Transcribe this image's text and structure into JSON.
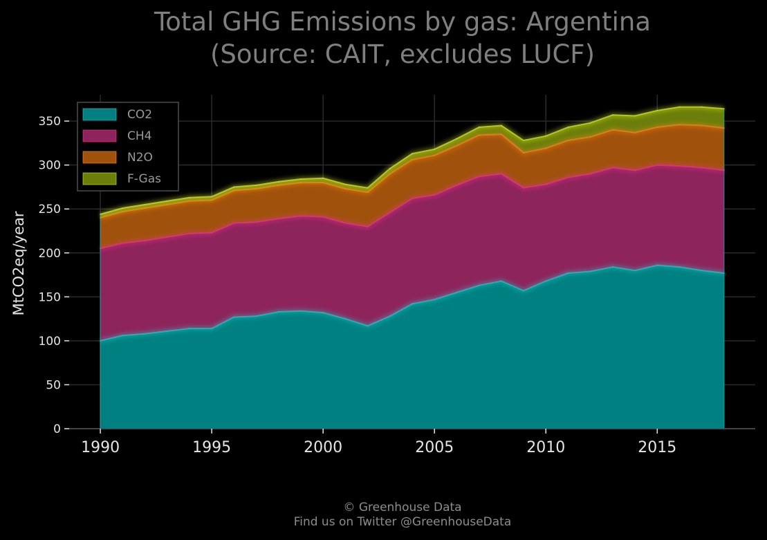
{
  "chart_data": {
    "type": "area",
    "stacked": true,
    "title_lines": [
      "Total GHG Emissions by gas: Argentina",
      "(Source: CAIT, excludes LUCF)"
    ],
    "xlabel": "",
    "ylabel": "MtCO2eq/year",
    "xlim": [
      1988.6,
      2019.4
    ],
    "ylim": [
      0,
      380
    ],
    "x_ticks": [
      1990,
      1995,
      2000,
      2005,
      2010,
      2015
    ],
    "y_ticks": [
      0,
      50,
      100,
      150,
      200,
      250,
      300,
      350
    ],
    "grid": true,
    "legend_position": "top-left",
    "x": [
      1990,
      1991,
      1992,
      1993,
      1994,
      1995,
      1996,
      1997,
      1998,
      1999,
      2000,
      2001,
      2002,
      2003,
      2004,
      2005,
      2006,
      2007,
      2008,
      2009,
      2010,
      2011,
      2012,
      2013,
      2014,
      2015,
      2016,
      2017,
      2018
    ],
    "series": [
      {
        "name": "CO2",
        "color": "#008080",
        "line_color": "#1fbfbf",
        "values": [
          100,
          106,
          108,
          111,
          114,
          114,
          127,
          128,
          133,
          134,
          132,
          125,
          117,
          128,
          142,
          147,
          155,
          163,
          168,
          157,
          168,
          177,
          179,
          184,
          180,
          186,
          184,
          180,
          177
        ]
      },
      {
        "name": "CH4",
        "color": "#8e245c",
        "line_color": "#e0358a",
        "values": [
          105,
          105,
          106,
          107,
          108,
          109,
          107,
          107,
          106,
          108,
          109,
          109,
          113,
          118,
          120,
          119,
          122,
          124,
          122,
          117,
          110,
          109,
          111,
          113,
          114,
          114,
          115,
          117,
          117
        ]
      },
      {
        "name": "N2O",
        "color": "#a0520c",
        "line_color": "#f0801e",
        "values": [
          35,
          36,
          37,
          37,
          37,
          37,
          37,
          38,
          38,
          38,
          39,
          39,
          39,
          44,
          44,
          45,
          45,
          47,
          45,
          40,
          41,
          42,
          42,
          43,
          43,
          43,
          47,
          48,
          48
        ]
      },
      {
        "name": "F-Gas",
        "color": "#6b7d0a",
        "line_color": "#c8dc20",
        "values": [
          4,
          4,
          4,
          4,
          4,
          4,
          4,
          4,
          4,
          4,
          5,
          5,
          5,
          6,
          7,
          7,
          8,
          9,
          10,
          14,
          14,
          15,
          16,
          17,
          19,
          19,
          20,
          21,
          22
        ]
      }
    ]
  },
  "footer": {
    "line1": "© Greenhouse Data",
    "line2": "Find us on Twitter @GreenhouseData"
  }
}
